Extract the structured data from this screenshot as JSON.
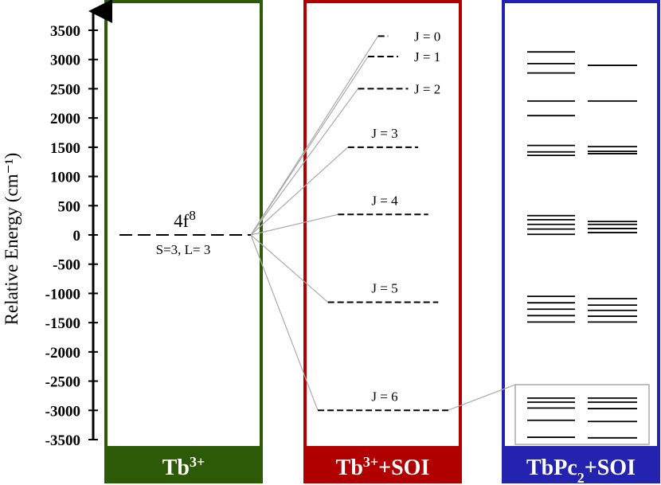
{
  "chart_data": {
    "type": "energy-levels",
    "y_label": "Relative Energy (cm⁻¹)",
    "ylim": [
      -3500,
      3500
    ],
    "yticks": [
      -3500,
      -3000,
      -2500,
      -2000,
      -1500,
      -1000,
      -500,
      0,
      500,
      1000,
      1500,
      2000,
      2500,
      3000,
      3500
    ],
    "panels": [
      {
        "label_parts": [
          {
            "text": "Tb"
          },
          {
            "text": "3+",
            "shift": "super"
          }
        ],
        "color": "#2d5a07",
        "levels": [
          {
            "value": 0,
            "label": "4f",
            "label_sup": "8",
            "sublabel": "S=3, L= 3"
          }
        ]
      },
      {
        "label_parts": [
          {
            "text": "Tb"
          },
          {
            "text": "3+",
            "shift": "super"
          },
          {
            "text": "+SOI"
          }
        ],
        "color": "#b00000",
        "levels": [
          {
            "value": 3400,
            "label": "J = 0"
          },
          {
            "value": 3050,
            "label": "J = 1"
          },
          {
            "value": 2500,
            "label": "J = 2"
          },
          {
            "value": 1500,
            "label": "J = 3"
          },
          {
            "value": 350,
            "label": "J = 4"
          },
          {
            "value": -1150,
            "label": "J = 5"
          },
          {
            "value": -3000,
            "label": "J = 6"
          }
        ]
      },
      {
        "label_parts": [
          {
            "text": "TbPc"
          },
          {
            "text": "2",
            "shift": "sub"
          },
          {
            "text": "+SOI"
          }
        ],
        "color": "#2323b0",
        "columns": [
          [
            3130,
            2930,
            2770,
            2290,
            2040,
            1530,
            1420,
            1360,
            330,
            260,
            180,
            100,
            10,
            -1050,
            -1160,
            -1270,
            -1380,
            -1490,
            -2790,
            -2860,
            -2960,
            -3170,
            -3460
          ],
          [
            2900,
            2290,
            1510,
            1430,
            1390,
            230,
            180,
            110,
            40,
            -1090,
            -1200,
            -1290,
            -1390,
            -1490,
            -2790,
            -2860,
            -2970,
            -3190,
            -3470
          ]
        ]
      }
    ]
  }
}
